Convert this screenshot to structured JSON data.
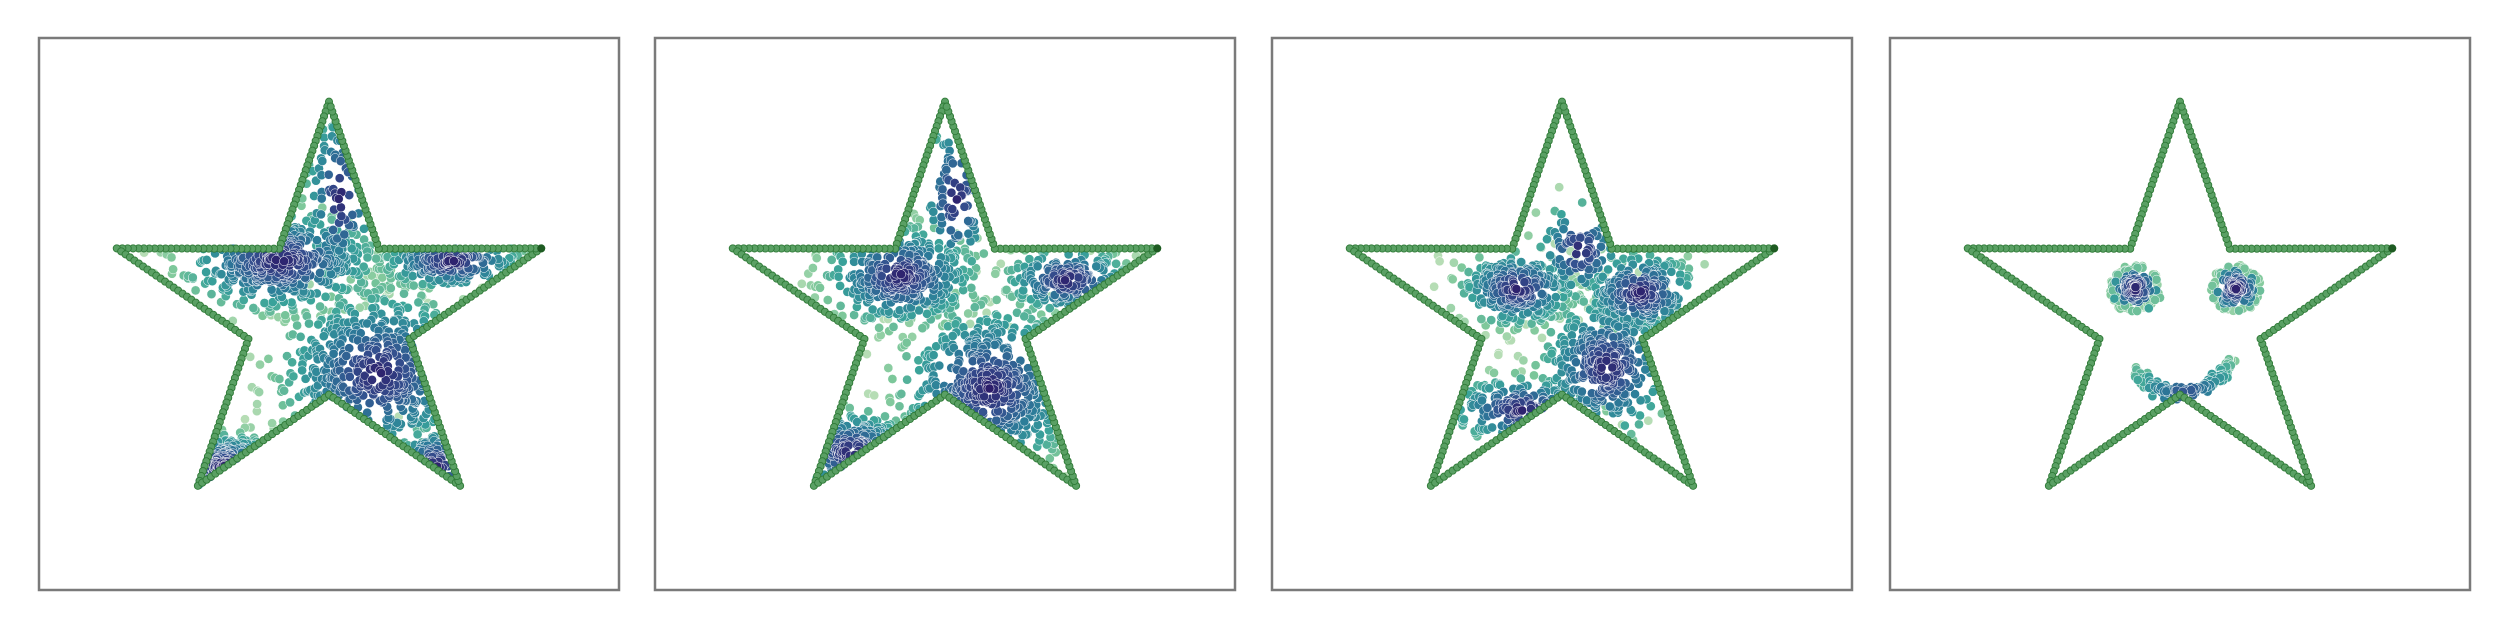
{
  "figure": {
    "panel_count": 4,
    "colors": {
      "frame": "#7a7a7a",
      "boundary_fill": "#5aa064",
      "boundary_edge": "#2f7a37",
      "boundary_end": "#1e5b22",
      "colormap": [
        "#2d1e6b",
        "#34508f",
        "#2c7c99",
        "#3aa39a",
        "#7cc79a",
        "#b6ddb5"
      ]
    }
  },
  "chart_data": [
    {
      "type": "scatter",
      "title": "",
      "xlabel": "",
      "ylabel": "",
      "grid": false,
      "axes_visible": false,
      "xlim": [
        -1.3,
        1.3
      ],
      "ylim": [
        -1.3,
        1.3
      ],
      "boundary": {
        "shape": "five-pointed star",
        "outer_radius": 1.0,
        "inner_radius": 0.38,
        "points_per_edge": 30
      },
      "clusters": [
        {
          "cx": -0.22,
          "cy": 0.25,
          "sx": 0.22,
          "sy": 0.12,
          "n": 420
        },
        {
          "cx": 0.55,
          "cy": 0.25,
          "sx": 0.16,
          "sy": 0.07,
          "n": 200
        },
        {
          "cx": 0.22,
          "cy": -0.28,
          "sx": 0.22,
          "sy": 0.2,
          "n": 430
        },
        {
          "cx": -0.47,
          "cy": -0.72,
          "sx": 0.14,
          "sy": 0.08,
          "n": 160
        },
        {
          "cx": 0.05,
          "cy": 0.55,
          "sx": 0.08,
          "sy": 0.22,
          "n": 90
        },
        {
          "cx": 0.48,
          "cy": -0.72,
          "sx": 0.1,
          "sy": 0.1,
          "n": 60
        }
      ]
    },
    {
      "type": "scatter",
      "title": "",
      "xlabel": "",
      "ylabel": "",
      "grid": false,
      "axes_visible": false,
      "xlim": [
        -1.3,
        1.3
      ],
      "ylim": [
        -1.3,
        1.3
      ],
      "boundary": {
        "shape": "five-pointed star",
        "outer_radius": 1.0,
        "inner_radius": 0.38,
        "points_per_edge": 30
      },
      "clusters": [
        {
          "cx": -0.2,
          "cy": 0.18,
          "sx": 0.17,
          "sy": 0.12,
          "n": 360
        },
        {
          "cx": 0.55,
          "cy": 0.16,
          "sx": 0.14,
          "sy": 0.08,
          "n": 200
        },
        {
          "cx": 0.2,
          "cy": -0.35,
          "sx": 0.2,
          "sy": 0.2,
          "n": 420
        },
        {
          "cx": -0.42,
          "cy": -0.65,
          "sx": 0.14,
          "sy": 0.1,
          "n": 150
        },
        {
          "cx": 0.05,
          "cy": 0.55,
          "sx": 0.08,
          "sy": 0.2,
          "n": 80
        }
      ]
    },
    {
      "type": "scatter",
      "title": "",
      "xlabel": "",
      "ylabel": "",
      "grid": false,
      "axes_visible": false,
      "xlim": [
        -1.3,
        1.3
      ],
      "ylim": [
        -1.3,
        1.3
      ],
      "boundary": {
        "shape": "five-pointed star",
        "outer_radius": 1.0,
        "inner_radius": 0.38,
        "points_per_edge": 30
      },
      "clusters": [
        {
          "cx": -0.2,
          "cy": 0.12,
          "sx": 0.13,
          "sy": 0.09,
          "n": 280
        },
        {
          "cx": 0.35,
          "cy": 0.1,
          "sx": 0.13,
          "sy": 0.1,
          "n": 240
        },
        {
          "cx": 0.2,
          "cy": -0.25,
          "sx": 0.15,
          "sy": 0.17,
          "n": 330
        },
        {
          "cx": -0.18,
          "cy": -0.45,
          "sx": 0.17,
          "sy": 0.08,
          "n": 160
        },
        {
          "cx": 0.08,
          "cy": 0.3,
          "sx": 0.1,
          "sy": 0.12,
          "n": 90
        }
      ]
    },
    {
      "type": "scatter",
      "title": "",
      "xlabel": "",
      "ylabel": "",
      "grid": false,
      "axes_visible": false,
      "xlim": [
        -1.3,
        1.3
      ],
      "ylim": [
        -1.3,
        1.3
      ],
      "boundary": {
        "shape": "five-pointed star",
        "outer_radius": 1.0,
        "inner_radius": 0.38,
        "points_per_edge": 30
      },
      "smiley": {
        "eyes": [
          {
            "cx": -0.2,
            "cy": 0.12,
            "ring_radius": 0.1,
            "ring_points": 70,
            "core_points": 90
          },
          {
            "cx": 0.25,
            "cy": 0.12,
            "ring_radius": 0.1,
            "ring_points": 70,
            "core_points": 90
          }
        ],
        "mouth": {
          "cx": 0.0,
          "cy": -0.13,
          "radius": 0.24,
          "angle_range_deg": [
            210,
            340
          ],
          "points": 160
        }
      }
    }
  ]
}
